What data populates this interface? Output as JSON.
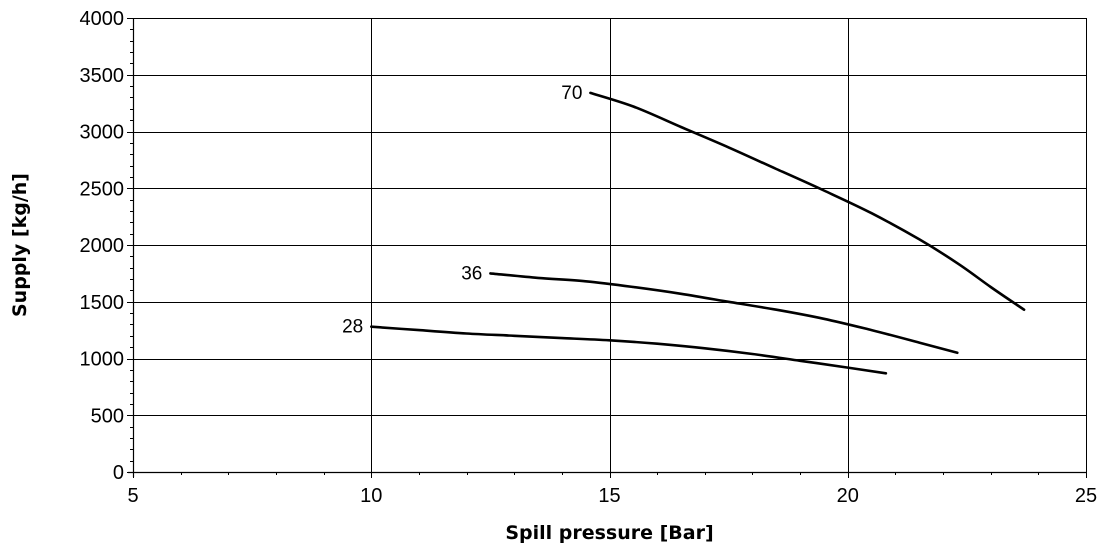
{
  "chart_data": {
    "type": "line",
    "title": "",
    "xlabel": "Spill pressure [Bar]",
    "ylabel": "Supply [kg/h]",
    "xlim": [
      5,
      25
    ],
    "ylim": [
      0,
      4000
    ],
    "x_ticks": [
      "5",
      "10",
      "15",
      "20",
      "25"
    ],
    "y_ticks": [
      "0",
      "500",
      "1000",
      "1500",
      "2000",
      "2500",
      "3000",
      "3500",
      "4000"
    ],
    "x_tick_values": [
      5,
      10,
      15,
      20,
      25
    ],
    "y_tick_values": [
      0,
      500,
      1000,
      1500,
      2000,
      2500,
      3000,
      3500,
      4000
    ],
    "x_minor_step": 1,
    "y_minor_step": 100,
    "grid": true,
    "legend": "none",
    "line_color": "#000000",
    "series": [
      {
        "name": "70",
        "x": [
          14.6,
          15.5,
          16.5,
          17.5,
          18.5,
          19.5,
          20.5,
          21.5,
          22.3,
          23.0,
          23.7
        ],
        "y": [
          3340,
          3220,
          3040,
          2860,
          2670,
          2480,
          2280,
          2050,
          1840,
          1630,
          1430
        ]
      },
      {
        "name": "36",
        "x": [
          12.5,
          13.5,
          14.5,
          15.5,
          16.5,
          17.5,
          18.5,
          19.5,
          20.5,
          21.5,
          22.3
        ],
        "y": [
          1750,
          1710,
          1680,
          1630,
          1570,
          1500,
          1430,
          1350,
          1250,
          1140,
          1050
        ]
      },
      {
        "name": "28",
        "x": [
          10.0,
          11.0,
          12.0,
          13.0,
          14.0,
          15.0,
          16.0,
          17.0,
          18.0,
          19.0,
          20.0,
          20.8
        ],
        "y": [
          1280,
          1250,
          1220,
          1200,
          1180,
          1160,
          1130,
          1090,
          1040,
          980,
          920,
          870
        ]
      }
    ]
  }
}
